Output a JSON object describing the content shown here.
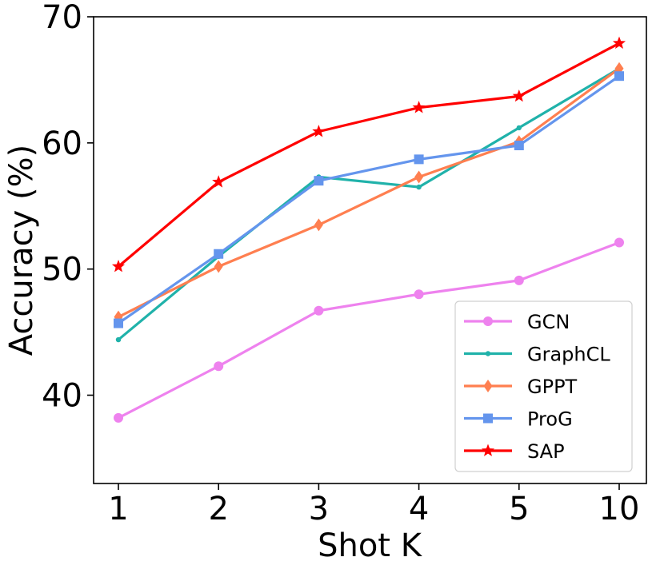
{
  "chart_data": {
    "type": "line",
    "xlabel": "Shot K",
    "ylabel": "Accuracy (%)",
    "categories": [
      "1",
      "2",
      "3",
      "4",
      "5",
      "10"
    ],
    "ylim": [
      33,
      70
    ],
    "yticks": [
      "40",
      "50",
      "60",
      "70"
    ],
    "legend_position": "lower-right",
    "grid": false,
    "series": [
      {
        "name": "GCN",
        "color": "#ee82ee",
        "marker": "circle",
        "values": [
          38.2,
          42.3,
          46.7,
          48.0,
          49.1,
          52.1
        ]
      },
      {
        "name": "GraphCL",
        "color": "#20b2aa",
        "marker": "small-dot",
        "values": [
          44.4,
          51.0,
          57.3,
          56.5,
          61.2,
          65.9
        ]
      },
      {
        "name": "GPPT",
        "color": "#ff7f50",
        "marker": "diamond",
        "values": [
          46.2,
          50.2,
          53.5,
          57.3,
          60.1,
          65.9
        ]
      },
      {
        "name": "ProG",
        "color": "#6495ed",
        "marker": "square",
        "values": [
          45.7,
          51.2,
          57.0,
          58.7,
          59.8,
          65.3
        ]
      },
      {
        "name": "SAP",
        "color": "#ff0000",
        "marker": "star",
        "values": [
          50.2,
          56.9,
          60.9,
          62.8,
          63.7,
          67.9
        ]
      }
    ]
  }
}
